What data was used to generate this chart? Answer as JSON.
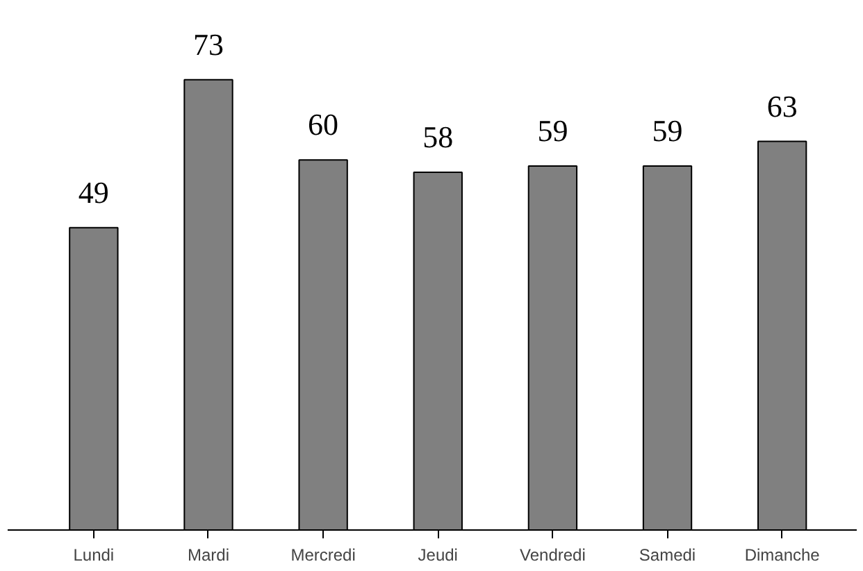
{
  "chart_data": {
    "type": "bar",
    "categories": [
      "Lundi",
      "Mardi",
      "Mercredi",
      "Jeudi",
      "Vendredi",
      "Samedi",
      "Dimanche"
    ],
    "values": [
      49,
      73,
      60,
      58,
      59,
      59,
      63
    ],
    "color": "#808080",
    "data_labels": true,
    "grid": false
  }
}
